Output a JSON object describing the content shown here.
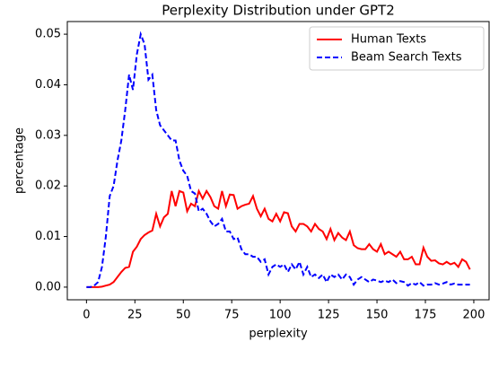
{
  "chart_data": {
    "type": "line",
    "title": "Perplexity Distribution under GPT2",
    "x_label": "perplexity",
    "y_label": "percentage",
    "x": [
      0,
      2,
      4,
      6,
      8,
      10,
      12,
      14,
      16,
      18,
      20,
      22,
      24,
      26,
      28,
      30,
      32,
      34,
      36,
      38,
      40,
      42,
      44,
      46,
      48,
      50,
      52,
      54,
      56,
      58,
      60,
      62,
      64,
      66,
      68,
      70,
      72,
      74,
      76,
      78,
      80,
      82,
      84,
      86,
      88,
      90,
      92,
      94,
      96,
      98,
      100,
      102,
      104,
      106,
      108,
      110,
      112,
      114,
      116,
      118,
      120,
      122,
      124,
      126,
      128,
      130,
      132,
      134,
      136,
      138,
      140,
      142,
      144,
      146,
      148,
      150,
      152,
      154,
      156,
      158,
      160,
      162,
      164,
      166,
      168,
      170,
      172,
      174,
      176,
      178,
      180,
      182,
      184,
      186,
      188,
      190,
      192,
      194,
      196,
      198
    ],
    "series": [
      {
        "name": "Human Texts",
        "color": "#ff0000",
        "dash": "solid",
        "values": [
          0,
          0,
          0,
          0,
          0.0001,
          0.0003,
          0.0005,
          0.001,
          0.002,
          0.003,
          0.0038,
          0.004,
          0.007,
          0.008,
          0.0095,
          0.0103,
          0.0108,
          0.0112,
          0.0145,
          0.012,
          0.0138,
          0.0145,
          0.019,
          0.016,
          0.019,
          0.0187,
          0.015,
          0.0165,
          0.016,
          0.019,
          0.0175,
          0.019,
          0.0178,
          0.016,
          0.0155,
          0.019,
          0.016,
          0.0183,
          0.0182,
          0.0155,
          0.016,
          0.0163,
          0.0165,
          0.018,
          0.0155,
          0.014,
          0.0155,
          0.0135,
          0.013,
          0.0145,
          0.013,
          0.0148,
          0.0146,
          0.012,
          0.011,
          0.0125,
          0.0125,
          0.012,
          0.011,
          0.0125,
          0.0115,
          0.011,
          0.0095,
          0.0115,
          0.0093,
          0.0107,
          0.0098,
          0.0093,
          0.011,
          0.0083,
          0.0077,
          0.0075,
          0.0075,
          0.0085,
          0.0075,
          0.007,
          0.0085,
          0.0065,
          0.007,
          0.0065,
          0.006,
          0.007,
          0.0055,
          0.0055,
          0.006,
          0.0045,
          0.0045,
          0.0078,
          0.006,
          0.0052,
          0.0053,
          0.0047,
          0.0045,
          0.005,
          0.0045,
          0.0048,
          0.004,
          0.0055,
          0.005,
          0.0035
        ]
      },
      {
        "name": "Beam Search Texts",
        "color": "#0000ff",
        "dash": "dashed",
        "values": [
          0,
          0,
          0.0003,
          0.001,
          0.004,
          0.01,
          0.018,
          0.02,
          0.025,
          0.029,
          0.035,
          0.042,
          0.039,
          0.046,
          0.05,
          0.048,
          0.041,
          0.042,
          0.035,
          0.032,
          0.031,
          0.03,
          0.029,
          0.029,
          0.025,
          0.023,
          0.022,
          0.019,
          0.0185,
          0.015,
          0.0155,
          0.0145,
          0.013,
          0.012,
          0.0125,
          0.0135,
          0.011,
          0.011,
          0.0095,
          0.0098,
          0.0075,
          0.0065,
          0.0065,
          0.006,
          0.006,
          0.005,
          0.0055,
          0.0025,
          0.004,
          0.0045,
          0.004,
          0.0045,
          0.003,
          0.0045,
          0.0035,
          0.005,
          0.0025,
          0.004,
          0.002,
          0.0025,
          0.0018,
          0.0025,
          0.001,
          0.0025,
          0.002,
          0.0025,
          0.0015,
          0.0025,
          0.002,
          0.0005,
          0.0015,
          0.002,
          0.0015,
          0.001,
          0.0015,
          0.0013,
          0.001,
          0.0013,
          0.001,
          0.0015,
          0.0008,
          0.0012,
          0.001,
          0.0003,
          0.0008,
          0.0005,
          0.001,
          0.0003,
          0.0005,
          0.0005,
          0.0008,
          0.0005,
          0.0007,
          0.001,
          0.0005,
          0.0007,
          0.0005,
          0.0005,
          0.0005,
          0.0005
        ]
      }
    ],
    "xlim": [
      -9.9,
      207.9
    ],
    "ylim": [
      -0.0025,
      0.0525
    ],
    "xticks": [
      0,
      25,
      50,
      75,
      100,
      125,
      150,
      175,
      200
    ],
    "yticks": [
      {
        "value": 0,
        "label": "0.00"
      },
      0.01,
      0.02,
      0.03,
      0.04,
      0.05
    ],
    "legend": "upper right",
    "grid": false
  }
}
